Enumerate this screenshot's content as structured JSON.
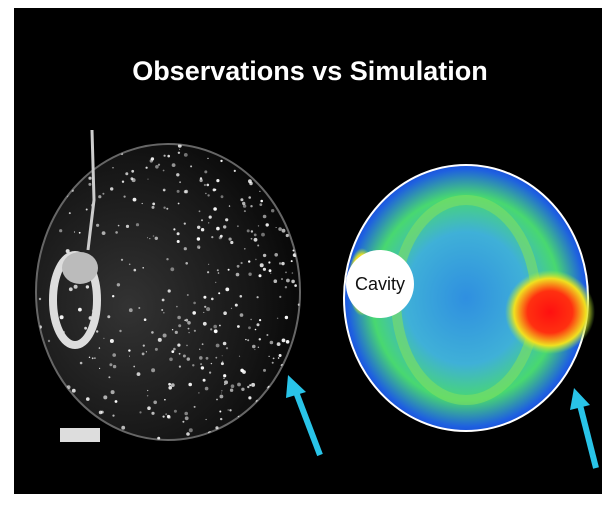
{
  "slide": {
    "title": "Observations vs Simulation",
    "label": "Cavity"
  }
}
